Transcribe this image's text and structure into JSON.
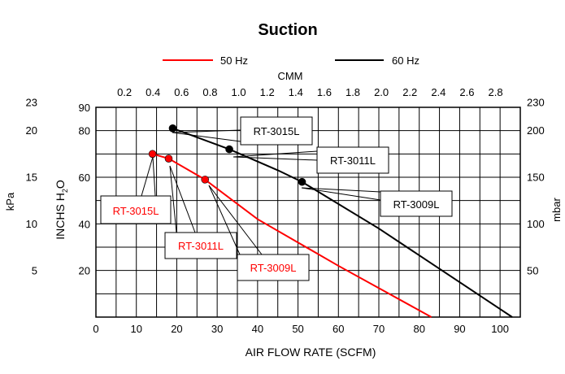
{
  "chart_data": {
    "type": "line",
    "title": "Suction",
    "xlabel": "AIR FLOW RATE (SCFM)",
    "ylabel": "INCHS H2O",
    "ylabel_main": "INCHS H",
    "ylabel_sub": "2",
    "ylabel_tail": "O",
    "x2label": "CMM",
    "y2label_left": "kPa",
    "y2label_right": "mbar",
    "xlim": [
      0,
      105
    ],
    "ylim": [
      0,
      90
    ],
    "x_ticks": [
      "0",
      "10",
      "20",
      "30",
      "40",
      "50",
      "60",
      "70",
      "80",
      "90",
      "100"
    ],
    "y_ticks": [
      "20",
      "40",
      "60",
      "80",
      "90"
    ],
    "cmm_ticks": [
      "0.2",
      "0.4",
      "0.6",
      "0.8",
      "1.0",
      "1.2",
      "1.4",
      "1.6",
      "1.8",
      "2.0",
      "2.2",
      "2.4",
      "2.6",
      "2.8"
    ],
    "kpa_ticks": [
      "5",
      "10",
      "15",
      "20",
      "23"
    ],
    "mbar_ticks": [
      "50",
      "100",
      "150",
      "200",
      "230"
    ],
    "legend_position": "top",
    "series": [
      {
        "name": "50 Hz",
        "color": "#ff0000",
        "x": [
          14,
          18,
          27,
          40,
          60,
          83
        ],
        "y": [
          70,
          68,
          59,
          42,
          22,
          0
        ]
      },
      {
        "name": "60 Hz",
        "color": "#000000",
        "x": [
          19,
          33,
          45,
          51,
          70,
          103
        ],
        "y": [
          81,
          72,
          63,
          58,
          38,
          0
        ]
      }
    ],
    "markers": [
      {
        "series": 0,
        "x": 14,
        "y": 70,
        "label": "RT-3015L"
      },
      {
        "series": 0,
        "x": 18,
        "y": 68,
        "label": "RT-3011L"
      },
      {
        "series": 0,
        "x": 27,
        "y": 59,
        "label": "RT-3009L"
      },
      {
        "series": 1,
        "x": 19,
        "y": 81,
        "label": "RT-3015L"
      },
      {
        "series": 1,
        "x": 33,
        "y": 72,
        "label": "RT-3011L"
      },
      {
        "series": 1,
        "x": 51,
        "y": 58,
        "label": "RT-3009L"
      }
    ]
  }
}
